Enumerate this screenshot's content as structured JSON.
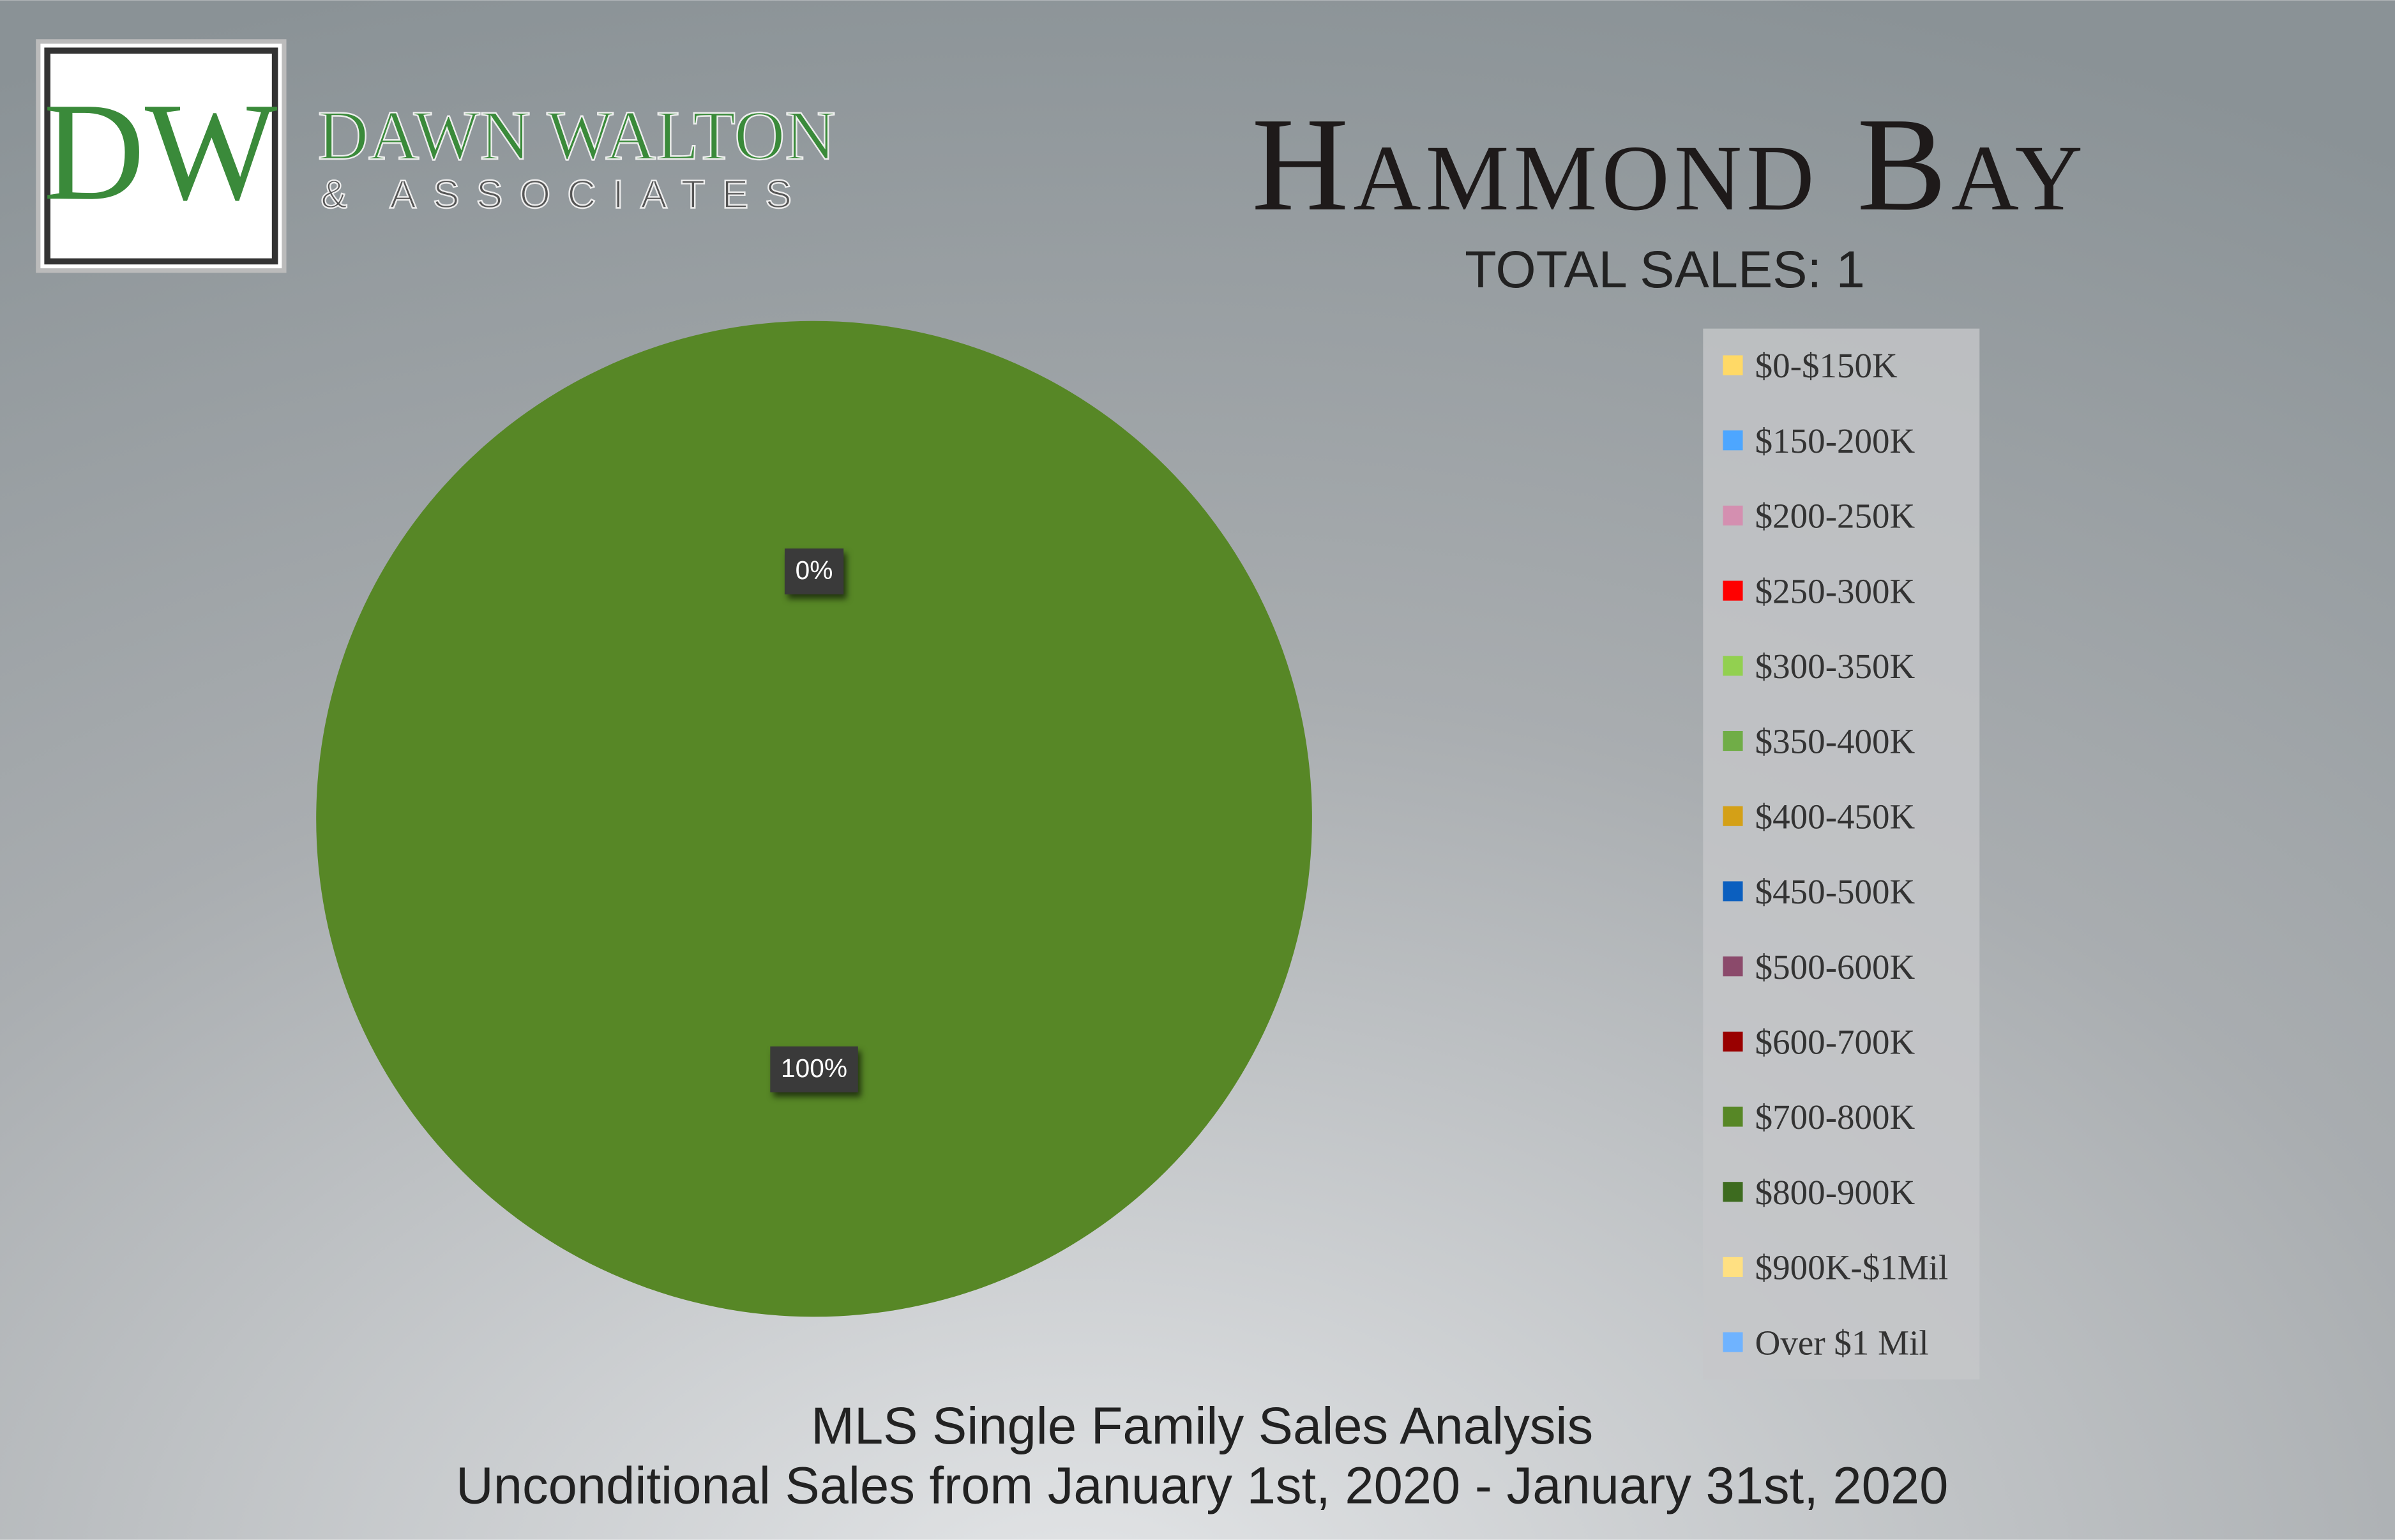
{
  "logo": {
    "monogram": "DW",
    "name": "DAWN WALTON",
    "tagline": "& ASSOCIATES"
  },
  "chart_data": {
    "type": "pie",
    "title": "Hammond Bay",
    "subtitle": "TOTAL SALES: 1",
    "footer": [
      "MLS Single Family Sales Analysis",
      "Unconditional Sales from January 1st, 2020 - January 31st, 2020"
    ],
    "categories": [
      "$0-$150K",
      "$150-200K",
      "$200-250K",
      "$250-300K",
      "$300-350K",
      "$350-400K",
      "$400-450K",
      "$450-500K",
      "$500-600K",
      "$600-700K",
      "$700-800K",
      "$800-900K",
      "$900K-$1Mil",
      "Over $1 Mil"
    ],
    "values": [
      0,
      0,
      0,
      0,
      0,
      0,
      0,
      0,
      0,
      0,
      100,
      0,
      0,
      0
    ],
    "value_labels": [
      null,
      null,
      null,
      null,
      null,
      null,
      null,
      null,
      null,
      null,
      "100%",
      "0%",
      null,
      null
    ],
    "colors": [
      "#ffd966",
      "#4da6ff",
      "#d48fb0",
      "#ff0000",
      "#92d050",
      "#70ad47",
      "#d4a017",
      "#0b5fbf",
      "#8b4a6b",
      "#990000",
      "#578726",
      "#3d6b1f",
      "#ffe082",
      "#6fb3ff"
    ],
    "legend": "right"
  }
}
